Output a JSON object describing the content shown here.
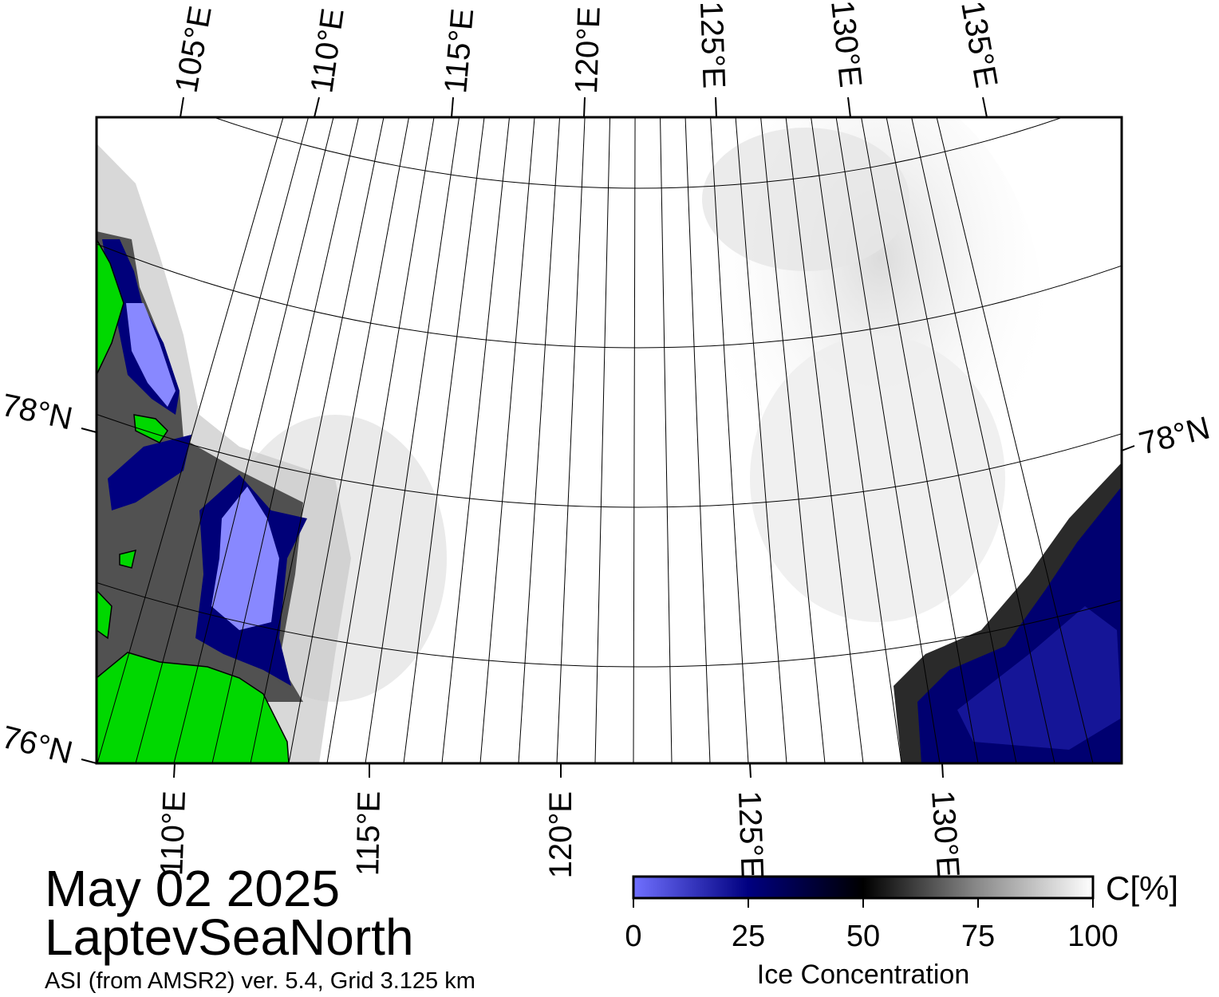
{
  "map": {
    "region": "LaptevSeaNorth",
    "top_lon_labels": [
      "105°E",
      "110°E",
      "115°E",
      "120°E",
      "125°E",
      "130°E",
      "135°E"
    ],
    "bottom_lon_labels": [
      "110°E",
      "115°E",
      "120°E",
      "125°E",
      "130°E"
    ],
    "lat_labels_left": [
      "78°N",
      "76°N"
    ],
    "lat_labels_right": [
      "78°N"
    ],
    "colors": {
      "land": "#00d800",
      "water_open": "#000080",
      "ice_full": "#ffffff",
      "frame": "#000000"
    }
  },
  "title": {
    "date": "May 02 2025",
    "region": "LaptevSeaNorth",
    "subtitle": "ASI (from AMSR2) ver. 5.4,  Grid 3.125 km"
  },
  "colorbar": {
    "label": "Ice Concentration",
    "unit": "C[%]",
    "ticks": [
      "0",
      "25",
      "50",
      "75",
      "100"
    ],
    "range": [
      0,
      100
    ],
    "stops": [
      {
        "value": 0,
        "color": "#7070ff"
      },
      {
        "value": 25,
        "color": "#000080"
      },
      {
        "value": 50,
        "color": "#000000"
      },
      {
        "value": 75,
        "color": "#8a8a8a"
      },
      {
        "value": 100,
        "color": "#ffffff"
      }
    ]
  }
}
